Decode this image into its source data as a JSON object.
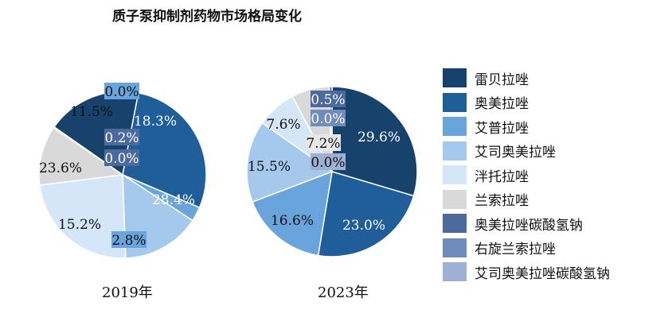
{
  "chart_data": {
    "type": "pie",
    "title": "质子泵抑制剂药物市场格局变化",
    "categories": [
      "雷贝拉唑",
      "奥美拉唑",
      "艾普拉唑",
      "艾司奥美拉唑",
      "泮托拉唑",
      "兰索拉唑",
      "奥美拉唑碳酸氢钠",
      "右旋兰索拉唑",
      "艾司奥美拉唑碳酸氢钠"
    ],
    "colors": [
      "#17426c",
      "#1f5e99",
      "#6aa4dc",
      "#a5c9ec",
      "#d4e6f8",
      "#d9d9d9",
      "#4d6a9c",
      "#6f8cbd",
      "#9fb0d4"
    ],
    "series": [
      {
        "name": "2019年",
        "values": [
          18.3,
          28.4,
          2.8,
          15.2,
          23.6,
          11.5,
          0.2,
          0.0,
          0.0
        ],
        "labels": [
          "18.3%",
          "28.4%",
          "2.8%",
          "15.2%",
          "23.6%",
          "11.5%",
          "0.2%",
          "0.0%",
          "0.0%"
        ]
      },
      {
        "name": "2023年",
        "values": [
          29.6,
          23.0,
          16.6,
          15.5,
          7.6,
          7.2,
          0.5,
          0.0,
          0.0
        ],
        "labels": [
          "29.6%",
          "23.0%",
          "16.6%",
          "15.5%",
          "7.6%",
          "7.2%",
          "0.5%",
          "0.0%",
          "0.0%"
        ]
      }
    ],
    "legend": "right"
  }
}
